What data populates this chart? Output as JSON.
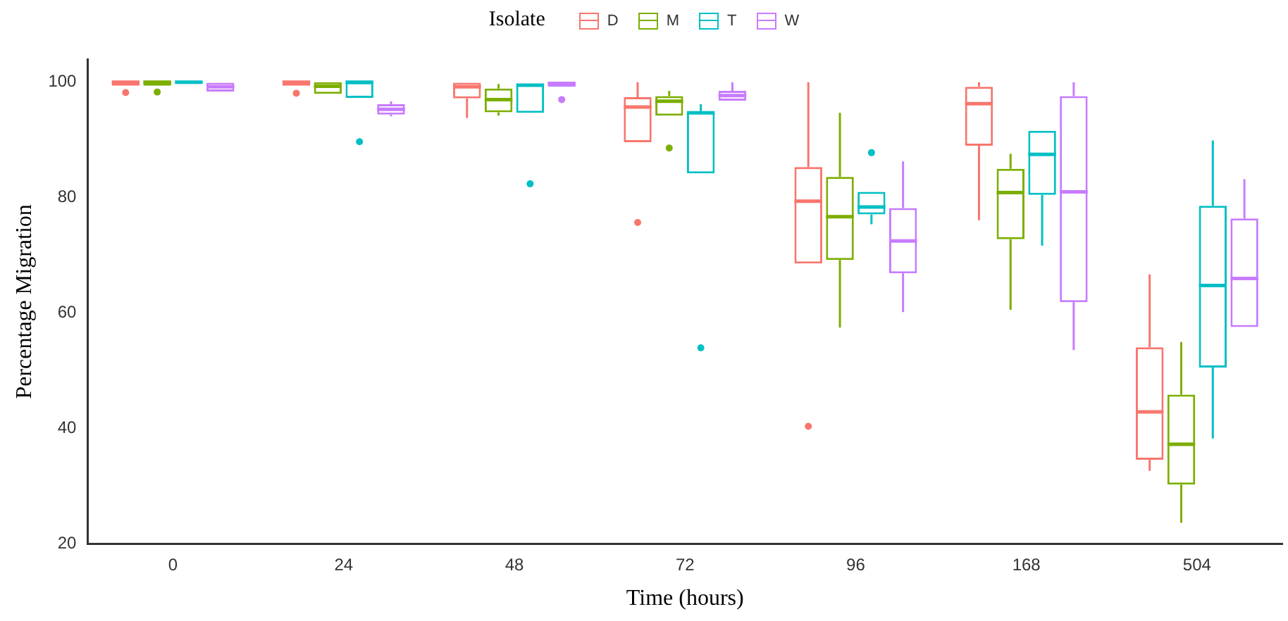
{
  "chart_data": {
    "type": "box",
    "xlabel": "Time (hours)",
    "ylabel": "Percentage Migration",
    "legend_title": "Isolate",
    "legend": "top",
    "grid": false,
    "categories": [
      "0",
      "24",
      "48",
      "72",
      "96",
      "168",
      "504"
    ],
    "ylim": [
      20,
      104
    ],
    "yticks": [
      20,
      40,
      60,
      80,
      100
    ],
    "series": [
      {
        "name": "D",
        "color": "#f8766d",
        "boxes": [
          {
            "low": 99.4,
            "q1": 99.4,
            "median": 100,
            "q3": 100,
            "high": 100,
            "outliers": [
              98.2
            ]
          },
          {
            "low": 99.4,
            "q1": 99.4,
            "median": 100,
            "q3": 100,
            "high": 100,
            "outliers": [
              98.1
            ]
          },
          {
            "low": 93.8,
            "q1": 97.2,
            "median": 99.2,
            "q3": 99.9,
            "high": 99.9
          },
          {
            "low": 89.6,
            "q1": 89.6,
            "median": 95.7,
            "q3": 97.4,
            "high": 100,
            "outliers": [
              75.7
            ]
          },
          {
            "low": 68.6,
            "q1": 68.6,
            "median": 79.4,
            "q3": 85.3,
            "high": 100,
            "outliers": [
              40.4
            ]
          },
          {
            "low": 76.1,
            "q1": 89,
            "median": 96.3,
            "q3": 99.2,
            "high": 100
          },
          {
            "low": 32.7,
            "q1": 34.6,
            "median": 42.9,
            "q3": 54.1,
            "high": 66.7
          }
        ]
      },
      {
        "name": "M",
        "color": "#7cae00",
        "boxes": [
          {
            "low": 99.4,
            "q1": 99.4,
            "median": 100,
            "q3": 100,
            "high": 100,
            "outliers": [
              98.3
            ]
          },
          {
            "low": 98,
            "q1": 98,
            "median": 99.3,
            "q3": 100,
            "high": 100
          },
          {
            "low": 94.2,
            "q1": 94.8,
            "median": 97,
            "q3": 98.9,
            "high": 99.7
          },
          {
            "low": 94.2,
            "q1": 94.2,
            "median": 96.7,
            "q3": 97.6,
            "high": 98.5,
            "outliers": [
              88.6
            ]
          },
          {
            "low": 57.5,
            "q1": 69.2,
            "median": 76.7,
            "q3": 83.6,
            "high": 94.7
          },
          {
            "low": 60.6,
            "q1": 72.8,
            "median": 80.9,
            "q3": 85,
            "high": 87.6
          },
          {
            "low": 23.7,
            "q1": 30.3,
            "median": 37.3,
            "q3": 45.9,
            "high": 55
          }
        ]
      },
      {
        "name": "T",
        "color": "#00bfc4",
        "boxes": [
          {
            "low": 100,
            "q1": 100,
            "median": 100,
            "q3": 100,
            "high": 100
          },
          {
            "low": 97.3,
            "q1": 97.3,
            "median": 100,
            "q3": 100,
            "high": 100,
            "outliers": [
              89.7
            ]
          },
          {
            "low": 94.7,
            "q1": 94.7,
            "median": 99.5,
            "q3": 99.7,
            "high": 99.7,
            "outliers": [
              82.4
            ]
          },
          {
            "low": 84.2,
            "q1": 84.2,
            "median": 94.7,
            "q3": 94.9,
            "high": 96.2,
            "outliers": [
              54
            ]
          },
          {
            "low": 75.4,
            "q1": 77.1,
            "median": 78.4,
            "q3": 81,
            "high": 81,
            "outliers": [
              87.8
            ]
          },
          {
            "low": 71.7,
            "q1": 80.5,
            "median": 87.5,
            "q3": 91.6,
            "high": 91.6
          },
          {
            "low": 38.3,
            "q1": 50.6,
            "median": 64.8,
            "q3": 78.6,
            "high": 89.9
          }
        ]
      },
      {
        "name": "W",
        "color": "#c77cff",
        "boxes": [
          {
            "low": 98.4,
            "q1": 98.4,
            "median": 99.2,
            "q3": 99.9,
            "high": 99.9
          },
          {
            "low": 94.1,
            "q1": 94.4,
            "median": 95.3,
            "q3": 96.2,
            "high": 96.7
          },
          {
            "low": 99.2,
            "q1": 99.2,
            "median": 99.8,
            "q3": 100,
            "high": 100,
            "outliers": [
              97
            ]
          },
          {
            "low": 96.8,
            "q1": 96.8,
            "median": 97.7,
            "q3": 98.5,
            "high": 100
          },
          {
            "low": 60.2,
            "q1": 66.9,
            "median": 72.5,
            "q3": 78.2,
            "high": 86.3
          },
          {
            "low": 53.6,
            "q1": 61.9,
            "median": 81,
            "q3": 97.6,
            "high": 100
          },
          {
            "low": 57.6,
            "q1": 57.6,
            "median": 66,
            "q3": 76.4,
            "high": 83.2
          }
        ]
      }
    ]
  }
}
